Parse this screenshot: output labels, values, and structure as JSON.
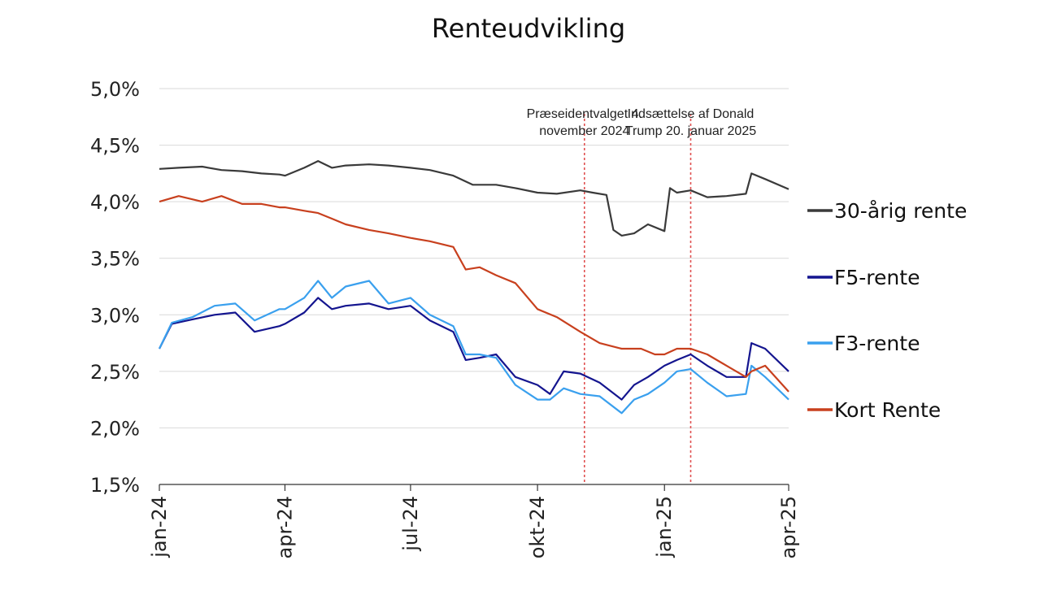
{
  "chart_data": {
    "type": "line",
    "title": "Renteudvikling",
    "xlabel": "",
    "ylabel": "",
    "ylim": [
      1.5,
      5.0
    ],
    "y_tick_labels": [
      "1,5%",
      "2,0%",
      "2,5%",
      "3,0%",
      "3,5%",
      "4,0%",
      "4,5%",
      "5,0%"
    ],
    "y_tick_values": [
      1.5,
      2.0,
      2.5,
      3.0,
      3.5,
      4.0,
      4.5,
      5.0
    ],
    "x_tick_labels": [
      "jan-24",
      "apr-24",
      "jul-24",
      "okt-24",
      "jan-25",
      "apr-25"
    ],
    "x_tick_dates": [
      "2024-01-01",
      "2024-04-01",
      "2024-07-01",
      "2024-10-01",
      "2025-01-01",
      "2025-04-01"
    ],
    "xlim": [
      "2024-01-01",
      "2025-04-01"
    ],
    "grid": true,
    "legend_position": "right",
    "annotations": [
      {
        "date": "2024-11-04",
        "lines": [
          "Præseidentvalget 4.",
          "november 2024"
        ]
      },
      {
        "date": "2025-01-20",
        "lines": [
          "Indsættelse af Donald",
          "Trump 20. januar 2025"
        ]
      }
    ],
    "series": [
      {
        "name": "30-årig rente",
        "color": "#3a3a3a",
        "x": [
          "2024-01-01",
          "2024-01-15",
          "2024-02-01",
          "2024-02-15",
          "2024-03-01",
          "2024-03-15",
          "2024-03-28",
          "2024-04-01",
          "2024-04-15",
          "2024-04-25",
          "2024-05-05",
          "2024-05-15",
          "2024-06-01",
          "2024-06-15",
          "2024-07-01",
          "2024-07-15",
          "2024-08-01",
          "2024-08-15",
          "2024-09-01",
          "2024-09-15",
          "2024-10-01",
          "2024-10-15",
          "2024-11-01",
          "2024-11-10",
          "2024-11-20",
          "2024-11-25",
          "2024-12-01",
          "2024-12-10",
          "2024-12-20",
          "2025-01-01",
          "2025-01-05",
          "2025-01-10",
          "2025-01-20",
          "2025-02-01",
          "2025-02-15",
          "2025-03-01",
          "2025-03-05",
          "2025-03-15",
          "2025-04-01"
        ],
        "values": [
          4.29,
          4.3,
          4.31,
          4.28,
          4.27,
          4.25,
          4.24,
          4.23,
          4.3,
          4.36,
          4.3,
          4.32,
          4.33,
          4.32,
          4.3,
          4.28,
          4.23,
          4.15,
          4.15,
          4.12,
          4.08,
          4.07,
          4.1,
          4.08,
          4.06,
          3.75,
          3.7,
          3.72,
          3.8,
          3.74,
          4.12,
          4.08,
          4.1,
          4.04,
          4.05,
          4.07,
          4.25,
          4.2,
          4.11
        ]
      },
      {
        "name": "F5-rente",
        "color": "#14158f",
        "x": [
          "2024-01-01",
          "2024-01-10",
          "2024-01-25",
          "2024-02-10",
          "2024-02-25",
          "2024-03-10",
          "2024-03-28",
          "2024-04-01",
          "2024-04-15",
          "2024-04-25",
          "2024-05-05",
          "2024-05-15",
          "2024-06-01",
          "2024-06-15",
          "2024-07-01",
          "2024-07-15",
          "2024-08-01",
          "2024-08-10",
          "2024-08-20",
          "2024-09-01",
          "2024-09-15",
          "2024-10-01",
          "2024-10-10",
          "2024-10-20",
          "2024-11-01",
          "2024-11-15",
          "2024-12-01",
          "2024-12-10",
          "2024-12-20",
          "2025-01-01",
          "2025-01-10",
          "2025-01-20",
          "2025-02-01",
          "2025-02-15",
          "2025-03-01",
          "2025-03-05",
          "2025-03-15",
          "2025-04-01"
        ],
        "values": [
          2.7,
          2.92,
          2.96,
          3.0,
          3.02,
          2.85,
          2.9,
          2.92,
          3.02,
          3.15,
          3.05,
          3.08,
          3.1,
          3.05,
          3.08,
          2.95,
          2.85,
          2.6,
          2.62,
          2.65,
          2.45,
          2.38,
          2.3,
          2.5,
          2.48,
          2.4,
          2.25,
          2.38,
          2.45,
          2.55,
          2.6,
          2.65,
          2.55,
          2.45,
          2.45,
          2.75,
          2.7,
          2.5
        ]
      },
      {
        "name": "F3-rente",
        "color": "#3aa0ee",
        "x": [
          "2024-01-01",
          "2024-01-10",
          "2024-01-25",
          "2024-02-10",
          "2024-02-25",
          "2024-03-10",
          "2024-03-28",
          "2024-04-01",
          "2024-04-15",
          "2024-04-25",
          "2024-05-05",
          "2024-05-15",
          "2024-06-01",
          "2024-06-15",
          "2024-07-01",
          "2024-07-15",
          "2024-08-01",
          "2024-08-10",
          "2024-08-20",
          "2024-09-01",
          "2024-09-15",
          "2024-10-01",
          "2024-10-10",
          "2024-10-20",
          "2024-11-01",
          "2024-11-15",
          "2024-12-01",
          "2024-12-10",
          "2024-12-20",
          "2025-01-01",
          "2025-01-10",
          "2025-01-20",
          "2025-02-01",
          "2025-02-15",
          "2025-03-01",
          "2025-03-05",
          "2025-03-15",
          "2025-04-01"
        ],
        "values": [
          2.7,
          2.93,
          2.98,
          3.08,
          3.1,
          2.95,
          3.05,
          3.05,
          3.15,
          3.3,
          3.15,
          3.25,
          3.3,
          3.1,
          3.15,
          3.0,
          2.9,
          2.65,
          2.65,
          2.62,
          2.38,
          2.25,
          2.25,
          2.35,
          2.3,
          2.28,
          2.13,
          2.25,
          2.3,
          2.4,
          2.5,
          2.52,
          2.4,
          2.28,
          2.3,
          2.55,
          2.45,
          2.25
        ]
      },
      {
        "name": "Kort Rente",
        "color": "#c8401e",
        "x": [
          "2024-01-01",
          "2024-01-15",
          "2024-02-01",
          "2024-02-15",
          "2024-03-01",
          "2024-03-15",
          "2024-03-28",
          "2024-04-01",
          "2024-04-15",
          "2024-04-25",
          "2024-05-05",
          "2024-05-15",
          "2024-06-01",
          "2024-06-15",
          "2024-07-01",
          "2024-07-15",
          "2024-08-01",
          "2024-08-10",
          "2024-08-20",
          "2024-09-01",
          "2024-09-15",
          "2024-10-01",
          "2024-10-15",
          "2024-11-01",
          "2024-11-15",
          "2024-12-01",
          "2024-12-15",
          "2024-12-25",
          "2025-01-01",
          "2025-01-10",
          "2025-01-20",
          "2025-02-01",
          "2025-02-15",
          "2025-03-01",
          "2025-03-05",
          "2025-03-15",
          "2025-04-01"
        ],
        "values": [
          4.0,
          4.05,
          4.0,
          4.05,
          3.98,
          3.98,
          3.95,
          3.95,
          3.92,
          3.9,
          3.85,
          3.8,
          3.75,
          3.72,
          3.68,
          3.65,
          3.6,
          3.4,
          3.42,
          3.35,
          3.28,
          3.05,
          2.98,
          2.85,
          2.75,
          2.7,
          2.7,
          2.65,
          2.65,
          2.7,
          2.7,
          2.65,
          2.55,
          2.45,
          2.5,
          2.55,
          2.32
        ]
      }
    ]
  }
}
